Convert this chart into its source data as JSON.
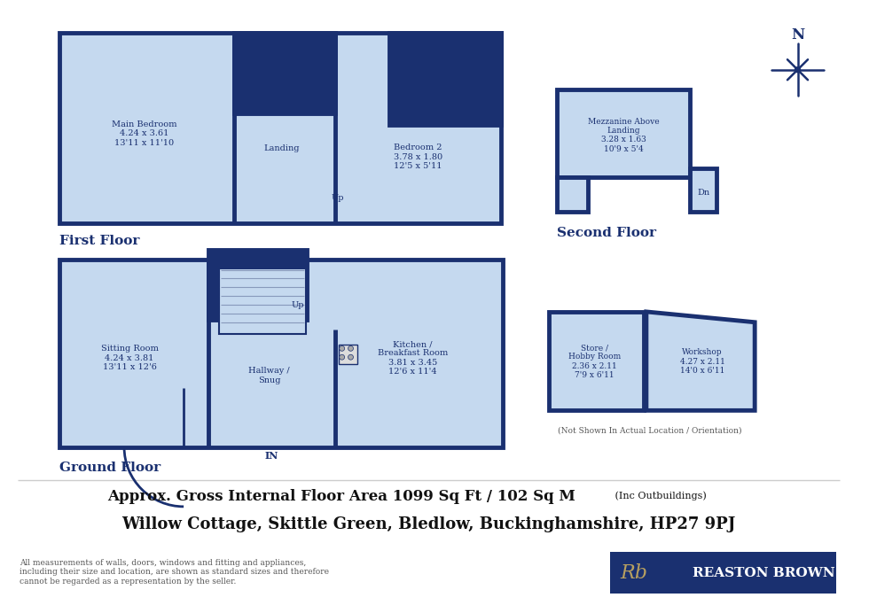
{
  "bg_color": "#ffffff",
  "wall_color": "#1a3070",
  "floor_color": "#c5d9ef",
  "dark_color": "#1a3070",
  "title1": "Approx. Gross Internal Floor Area 1099 Sq Ft / 102 Sq M",
  "title1_small": " (Inc Outbuildings)",
  "title2": "Willow Cottage, Skittle Green, Bledlow, Buckinghamshire, HP27 9PJ",
  "disclaimer": "All measurements of walls, doors, windows and fitting and appliances,\nincluding their size and location, are shown as standard sizes and therefore\ncannot be regarded as a representation by the seller.",
  "brand_text": "REASTON BROWN",
  "brand_rb": "Rb",
  "label_first": "First Floor",
  "label_second": "Second Floor",
  "label_ground": "Ground Floor",
  "label_not_shown": "(Not Shown In Actual Location / Orientation)",
  "room_main_bed": "Main Bedroom\n4.24 x 3.61\n13'11 x 11'10",
  "room_landing": "Landing",
  "room_bed2": "Bedroom 2\n3.78 x 1.80\n12'5 x 5'11",
  "room_mezz": "Mezzanine Above\nLanding\n3.28 x 1.63\n10'9 x 5'4",
  "room_sitting": "Sitting Room\n4.24 x 3.81\n13'11 x 12'6",
  "room_hallway": "Hallway /\nSnug",
  "room_kitchen": "Kitchen /\nBreakfast Room\n3.81 x 3.45\n12'6 x 11'4",
  "room_store": "Store /\nHobby Room\n2.36 x 2.11\n7'9 x 6'11",
  "room_workshop": "Workshop\n4.27 x 2.11\n14'0 x 6'11"
}
